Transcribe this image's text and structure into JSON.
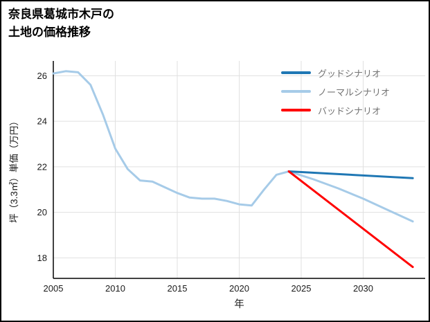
{
  "page": {
    "background": "#ffffff",
    "border_color": "#000000"
  },
  "chart_data": {
    "type": "line",
    "title": "奈良県葛城市木戸の土地の価格推移",
    "title_lines": [
      "奈良県葛城市木戸の",
      "土地の価格推移"
    ],
    "xlabel": "年",
    "ylabel": "坪（3.3㎡）単価（万円）",
    "xlim": [
      2005,
      2035
    ],
    "ylim": [
      17.1,
      26.65
    ],
    "xticks": [
      2005,
      2010,
      2015,
      2020,
      2025,
      2030
    ],
    "yticks": [
      18,
      20,
      22,
      24,
      26
    ],
    "grid": true,
    "legend_position": "top-right",
    "colors": {
      "grid": "#e0e0e0",
      "axis": "#000000",
      "tick_text": "#1a1a1a",
      "legend_text": "#737373"
    },
    "series": [
      {
        "id": "normal-scenario-with-history",
        "name": "ノーマルシナリオ",
        "color": "#a6cbe8",
        "width": 3,
        "x": [
          2005,
          2006,
          2007,
          2008,
          2009,
          2010,
          2011,
          2012,
          2013,
          2014,
          2015,
          2016,
          2017,
          2018,
          2019,
          2020,
          2021,
          2022,
          2023,
          2024,
          2026,
          2028,
          2030,
          2032,
          2034
        ],
        "y": [
          26.1,
          26.2,
          26.15,
          25.6,
          24.3,
          22.8,
          21.9,
          21.4,
          21.35,
          21.1,
          20.85,
          20.65,
          20.6,
          20.6,
          20.5,
          20.35,
          20.3,
          21.0,
          21.65,
          21.8,
          21.45,
          21.05,
          20.6,
          20.1,
          19.6
        ]
      },
      {
        "id": "good-scenario",
        "name": "グッドシナリオ",
        "color": "#1f77b4",
        "width": 3,
        "x": [
          2024,
          2034
        ],
        "y": [
          21.8,
          21.5
        ]
      },
      {
        "id": "bad-scenario",
        "name": "バッドシナリオ",
        "color": "#ff0000",
        "width": 3,
        "x": [
          2024,
          2034
        ],
        "y": [
          21.8,
          17.6
        ]
      }
    ],
    "legend": [
      {
        "label": "グッドシナリオ",
        "color": "#1f77b4"
      },
      {
        "label": "ノーマルシナリオ",
        "color": "#a6cbe8"
      },
      {
        "label": "バッドシナリオ",
        "color": "#ff0000"
      }
    ]
  }
}
